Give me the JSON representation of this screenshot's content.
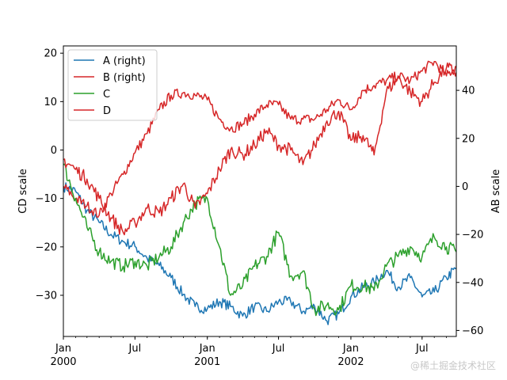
{
  "chart_data": {
    "type": "line",
    "title": "",
    "ylabel_left": "CD scale",
    "ylabel_right": "AB scale",
    "ylim_left": [
      -38.5,
      21.5
    ],
    "ylim_right": [
      -62.5,
      58.5
    ],
    "xlim": [
      "2000-01-01",
      "2002-09-26"
    ],
    "left_ticks": [
      20,
      10,
      0,
      -10,
      -20,
      -30
    ],
    "left_tick_labels": [
      "20",
      "10",
      "0",
      "−10",
      "−20",
      "−30"
    ],
    "right_ticks": [
      40,
      20,
      0,
      -20,
      -40,
      -60
    ],
    "right_tick_labels": [
      "40",
      "20",
      "0",
      "−20",
      "−40",
      "−60"
    ],
    "x_ticks": [
      {
        "date": "2000-01-01",
        "label": "Jan",
        "year": "2000"
      },
      {
        "date": "2000-07-01",
        "label": "Jul",
        "year": ""
      },
      {
        "date": "2001-01-01",
        "label": "Jan",
        "year": "2001"
      },
      {
        "date": "2001-07-01",
        "label": "Jul",
        "year": ""
      },
      {
        "date": "2002-01-01",
        "label": "Jan",
        "year": "2002"
      },
      {
        "date": "2002-07-01",
        "label": "Jul",
        "year": ""
      }
    ],
    "grid": false,
    "legend_position": "top-left",
    "series": [
      {
        "name": "A (right)",
        "axis": "right",
        "color": "#1f77b4",
        "x": [
          "2000-01-01",
          "2000-02-01",
          "2000-03-01",
          "2000-04-01",
          "2000-05-01",
          "2000-06-01",
          "2000-07-01",
          "2000-08-01",
          "2000-09-01",
          "2000-10-01",
          "2000-11-01",
          "2000-12-01",
          "2001-01-01",
          "2001-02-01",
          "2001-03-01",
          "2001-04-01",
          "2001-05-01",
          "2001-06-01",
          "2001-07-01",
          "2001-08-01",
          "2001-09-01",
          "2001-10-01",
          "2001-11-01",
          "2001-12-01",
          "2002-01-01",
          "2002-02-01",
          "2002-03-01",
          "2002-04-01",
          "2002-05-01",
          "2002-06-01",
          "2002-07-01",
          "2002-08-01",
          "2002-09-01",
          "2002-09-26"
        ],
        "y": [
          0,
          -2,
          -10,
          -15,
          -20,
          -23,
          -25,
          -30,
          -33,
          -38,
          -45,
          -50,
          -51,
          -48,
          -50,
          -54,
          -50,
          -52,
          -48,
          -48,
          -52,
          -50,
          -56,
          -53,
          -46,
          -42,
          -40,
          -35,
          -42,
          -38,
          -46,
          -44,
          -38,
          -34
        ]
      },
      {
        "name": "B (right)",
        "axis": "right",
        "color": "#d62728",
        "x": [
          "2000-01-01",
          "2000-02-01",
          "2000-03-01",
          "2000-04-01",
          "2000-05-01",
          "2000-06-01",
          "2000-07-01",
          "2000-08-01",
          "2000-09-01",
          "2000-10-01",
          "2000-11-01",
          "2000-12-01",
          "2001-01-01",
          "2001-02-01",
          "2001-03-01",
          "2001-04-01",
          "2001-05-01",
          "2001-06-01",
          "2001-07-01",
          "2001-08-01",
          "2001-09-01",
          "2001-10-01",
          "2001-11-01",
          "2001-12-01",
          "2002-01-01",
          "2002-02-01",
          "2002-03-01",
          "2002-04-01",
          "2002-05-01",
          "2002-06-01",
          "2002-07-01",
          "2002-08-01",
          "2002-09-01",
          "2002-09-26"
        ],
        "y": [
          0,
          -5,
          -8,
          -12,
          -3,
          5,
          14,
          22,
          32,
          38,
          39,
          38,
          36,
          28,
          24,
          26,
          30,
          34,
          34,
          28,
          28,
          28,
          32,
          36,
          32,
          40,
          42,
          44,
          46,
          44,
          48,
          52,
          46,
          50
        ]
      },
      {
        "name": "C",
        "axis": "left",
        "color": "#2ca02c",
        "x": [
          "2000-01-01",
          "2000-02-01",
          "2000-03-01",
          "2000-04-01",
          "2000-05-01",
          "2000-06-01",
          "2000-07-01",
          "2000-08-01",
          "2000-09-01",
          "2000-10-01",
          "2000-11-01",
          "2000-12-01",
          "2001-01-01",
          "2001-02-01",
          "2001-03-01",
          "2001-04-01",
          "2001-05-01",
          "2001-06-01",
          "2001-07-01",
          "2001-08-01",
          "2001-09-01",
          "2001-10-01",
          "2001-11-01",
          "2001-12-01",
          "2002-01-01",
          "2002-02-01",
          "2002-03-01",
          "2002-04-01",
          "2002-05-01",
          "2002-06-01",
          "2002-07-01",
          "2002-08-01",
          "2002-09-01",
          "2002-09-26"
        ],
        "y": [
          -3,
          -10,
          -16,
          -21,
          -23,
          -24,
          -23,
          -24,
          -22,
          -20,
          -15,
          -11,
          -10,
          -20,
          -30,
          -28,
          -24,
          -22,
          -17,
          -26,
          -25,
          -33,
          -32,
          -33,
          -28,
          -28,
          -29,
          -24,
          -22,
          -20,
          -22,
          -18,
          -20,
          -21
        ]
      },
      {
        "name": "D",
        "axis": "left",
        "color": "#d62728",
        "x": [
          "2000-01-01",
          "2000-02-01",
          "2000-03-01",
          "2000-04-01",
          "2000-05-01",
          "2000-06-01",
          "2000-07-01",
          "2000-08-01",
          "2000-09-01",
          "2000-10-01",
          "2000-11-01",
          "2000-12-01",
          "2001-01-01",
          "2001-02-01",
          "2001-03-01",
          "2001-04-01",
          "2001-05-01",
          "2001-06-01",
          "2001-07-01",
          "2001-08-01",
          "2001-09-01",
          "2001-10-01",
          "2001-11-01",
          "2001-12-01",
          "2002-01-01",
          "2002-02-01",
          "2002-03-01",
          "2002-04-01",
          "2002-05-01",
          "2002-06-01",
          "2002-07-01",
          "2002-08-01",
          "2002-09-01",
          "2002-09-26"
        ],
        "y": [
          -2,
          -4,
          -6,
          -10,
          -14,
          -17,
          -15,
          -12,
          -13,
          -10,
          -7,
          -12,
          -9,
          -4,
          0,
          -1,
          1,
          4,
          1,
          0,
          -3,
          1,
          6,
          8,
          2,
          3,
          -1,
          12,
          15,
          12,
          10,
          14,
          17,
          16
        ]
      }
    ]
  },
  "watermark": "@稀土掘金技术社区"
}
